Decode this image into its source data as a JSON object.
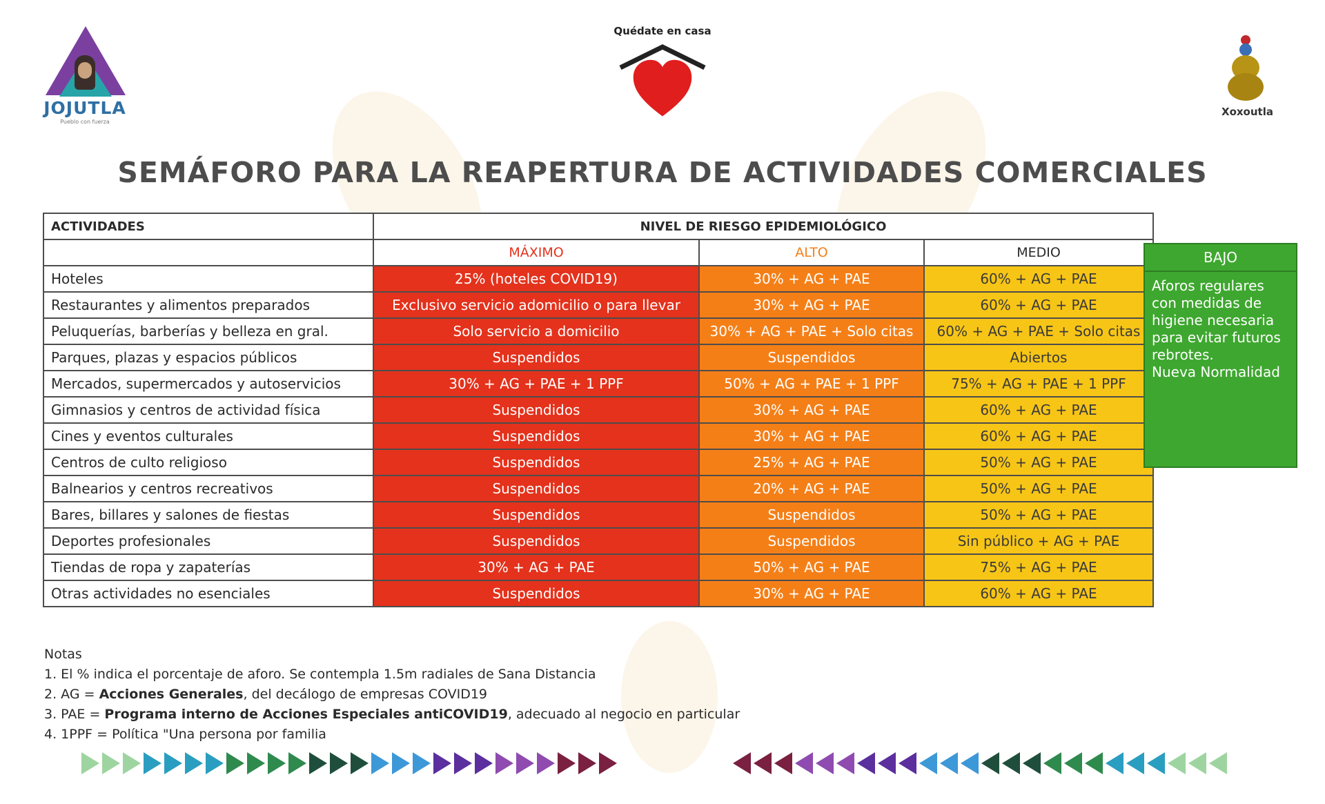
{
  "header": {
    "left_logo_name": "JOJUTLA",
    "left_logo_sub": "Pueblo con fuerza",
    "center_logo_text": "Quédate en casa",
    "right_logo_name": "Xoxoutla"
  },
  "title": "SEMÁFORO PARA LA REAPERTURA DE ACTIVIDADES COMERCIALES",
  "table": {
    "col_activities": "ACTIVIDADES",
    "col_level": "NIVEL DE RIESGO EPIDEMIOLÓGICO",
    "levels": {
      "maximo": "MÁXIMO",
      "alto": "ALTO",
      "medio": "MEDIO",
      "bajo": "BAJO"
    },
    "rows": [
      {
        "activity": "Hoteles",
        "maximo": "25% (hoteles COVID19)",
        "alto": "30% + AG + PAE",
        "medio": "60% + AG + PAE"
      },
      {
        "activity": "Restaurantes y alimentos preparados",
        "maximo": "Exclusivo servicio adomicilio o para llevar",
        "alto": "30% + AG + PAE",
        "medio": "60% + AG + PAE"
      },
      {
        "activity": "Peluquerías, barberías y belleza en gral.",
        "maximo": "Solo servicio a domicilio",
        "alto": "30% + AG + PAE + Solo citas",
        "medio": "60% + AG + PAE + Solo citas"
      },
      {
        "activity": "Parques, plazas y espacios públicos",
        "maximo": "Suspendidos",
        "alto": "Suspendidos",
        "medio": "Abiertos"
      },
      {
        "activity": "Mercados, supermercados y autoservicios",
        "maximo": "30% + AG + PAE + 1 PPF",
        "alto": "50% + AG + PAE + 1 PPF",
        "medio": "75% + AG + PAE + 1 PPF"
      },
      {
        "activity": "Gimnasios y centros de actividad física",
        "maximo": "Suspendidos",
        "alto": "30% + AG + PAE",
        "medio": "60% + AG + PAE"
      },
      {
        "activity": "Cines y eventos culturales",
        "maximo": "Suspendidos",
        "alto": "30% + AG + PAE",
        "medio": "60% + AG + PAE"
      },
      {
        "activity": "Centros de culto religioso",
        "maximo": "Suspendidos",
        "alto": "25% + AG + PAE",
        "medio": "50% + AG + PAE"
      },
      {
        "activity": "Balnearios y centros recreativos",
        "maximo": "Suspendidos",
        "alto": "20% + AG + PAE",
        "medio": "50% + AG + PAE"
      },
      {
        "activity": "Bares, billares y salones de fiestas",
        "maximo": "Suspendidos",
        "alto": "Suspendidos",
        "medio": "50% + AG + PAE"
      },
      {
        "activity": "Deportes profesionales",
        "maximo": "Suspendidos",
        "alto": "Suspendidos",
        "medio": "Sin público + AG + PAE"
      },
      {
        "activity": "Tiendas de ropa y zapaterías",
        "maximo": "30% + AG + PAE",
        "alto": "50% + AG + PAE",
        "medio": "75% + AG + PAE"
      },
      {
        "activity": "Otras actividades no esenciales",
        "maximo": "Suspendidos",
        "alto": "30% + AG + PAE",
        "medio": "60% + AG + PAE"
      }
    ],
    "bajo_text": "Aforos regulares con medidas de higiene necesaria para evitar futuros rebrotes.",
    "bajo_text2": "Nueva Normalidad"
  },
  "notes": {
    "heading": "Notas",
    "n1": "1. El % indica el porcentaje de aforo. Se contempla 1.5m radiales de Sana Distancia",
    "n2_pre": "2. AG = ",
    "n2_bold": "Acciones Generales",
    "n2_post": ", del decálogo de empresas COVID19",
    "n3_pre": "3. PAE = ",
    "n3_bold": "Programa interno de Acciones Especiales antiCOVID19",
    "n3_post": ", adecuado al negocio en particular",
    "n4": "4. 1PPF = Política \"Una persona por familia"
  },
  "colors": {
    "maximo": "#e4321c",
    "alto": "#f57f17",
    "medio": "#f7c516",
    "bajo": "#3ea72f"
  },
  "icons": {
    "left_logo": "pyramid-portrait-icon",
    "center_logo": "house-heart-icon",
    "right_logo": "figure-statue-icon"
  }
}
